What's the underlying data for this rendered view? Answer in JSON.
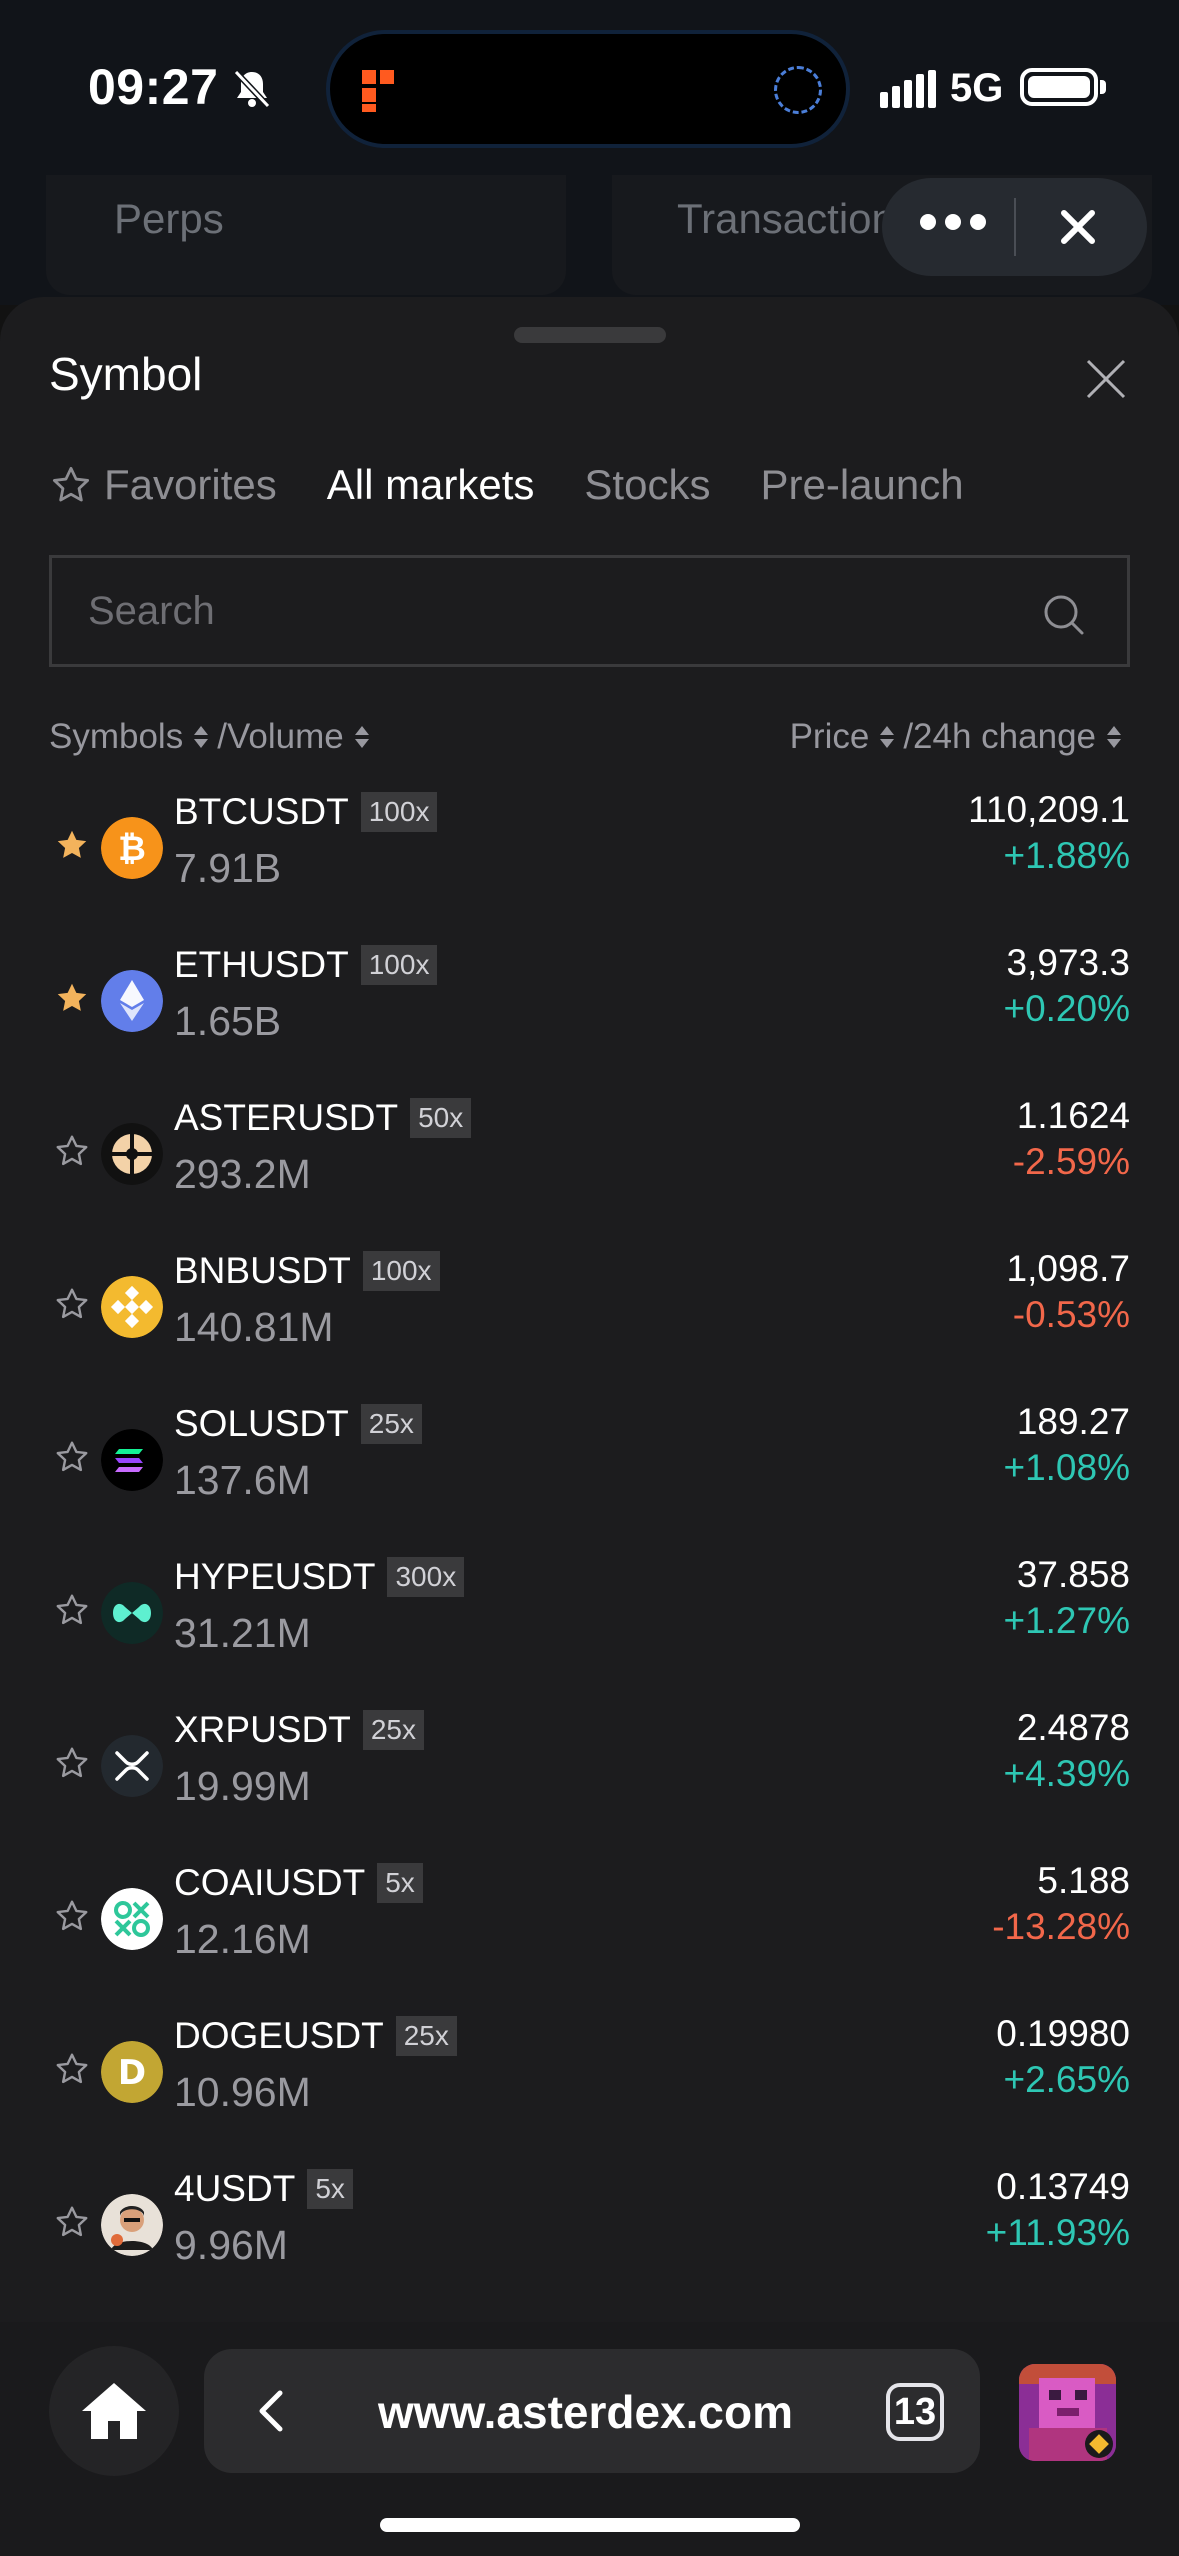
{
  "status_bar": {
    "time": "09:27",
    "network": "5G"
  },
  "background_page": {
    "tabs": [
      "Perps",
      "Transactions"
    ]
  },
  "sheet": {
    "title": "Symbol",
    "tabs": [
      {
        "label": "Favorites",
        "icon": "star-outline-icon",
        "active": false
      },
      {
        "label": "All markets",
        "active": true
      },
      {
        "label": "Stocks",
        "active": false
      },
      {
        "label": "Pre-launch",
        "active": false
      }
    ],
    "search": {
      "placeholder": "Search"
    },
    "columns": {
      "symbols": "Symbols",
      "volume": "/Volume",
      "price": "Price",
      "change": "/24h change"
    },
    "markets": [
      {
        "symbol": "BTCUSDT",
        "leverage": "100x",
        "volume": "7.91B",
        "price": "110,209.1",
        "change": "+1.88%",
        "direction": "up",
        "favorite": true,
        "icon": "bitcoin-icon"
      },
      {
        "symbol": "ETHUSDT",
        "leverage": "100x",
        "volume": "1.65B",
        "price": "3,973.3",
        "change": "+0.20%",
        "direction": "up",
        "favorite": true,
        "icon": "ethereum-icon"
      },
      {
        "symbol": "ASTERUSDT",
        "leverage": "50x",
        "volume": "293.2M",
        "price": "1.1624",
        "change": "-2.59%",
        "direction": "down",
        "favorite": false,
        "icon": "aster-icon"
      },
      {
        "symbol": "BNBUSDT",
        "leverage": "100x",
        "volume": "140.81M",
        "price": "1,098.7",
        "change": "-0.53%",
        "direction": "down",
        "favorite": false,
        "icon": "bnb-icon"
      },
      {
        "symbol": "SOLUSDT",
        "leverage": "25x",
        "volume": "137.6M",
        "price": "189.27",
        "change": "+1.08%",
        "direction": "up",
        "favorite": false,
        "icon": "solana-icon"
      },
      {
        "symbol": "HYPEUSDT",
        "leverage": "300x",
        "volume": "31.21M",
        "price": "37.858",
        "change": "+1.27%",
        "direction": "up",
        "favorite": false,
        "icon": "hyperliquid-icon"
      },
      {
        "symbol": "XRPUSDT",
        "leverage": "25x",
        "volume": "19.99M",
        "price": "2.4878",
        "change": "+4.39%",
        "direction": "up",
        "favorite": false,
        "icon": "xrp-icon"
      },
      {
        "symbol": "COAIUSDT",
        "leverage": "5x",
        "volume": "12.16M",
        "price": "5.188",
        "change": "-13.28%",
        "direction": "down",
        "favorite": false,
        "icon": "coai-icon"
      },
      {
        "symbol": "DOGEUSDT",
        "leverage": "25x",
        "volume": "10.96M",
        "price": "0.19980",
        "change": "+2.65%",
        "direction": "up",
        "favorite": false,
        "icon": "dogecoin-icon"
      },
      {
        "symbol": "4USDT",
        "leverage": "5x",
        "volume": "9.96M",
        "price": "0.13749",
        "change": "+11.93%",
        "direction": "up",
        "favorite": false,
        "icon": "four-avatar-icon"
      }
    ]
  },
  "browser": {
    "url": "www.asterdex.com",
    "tab_count": "13"
  },
  "colors": {
    "positive": "#2ec7b4",
    "negative": "#f2674a",
    "favorite_star": "#f3b35c",
    "sheet_bg": "#1c1c1e"
  }
}
